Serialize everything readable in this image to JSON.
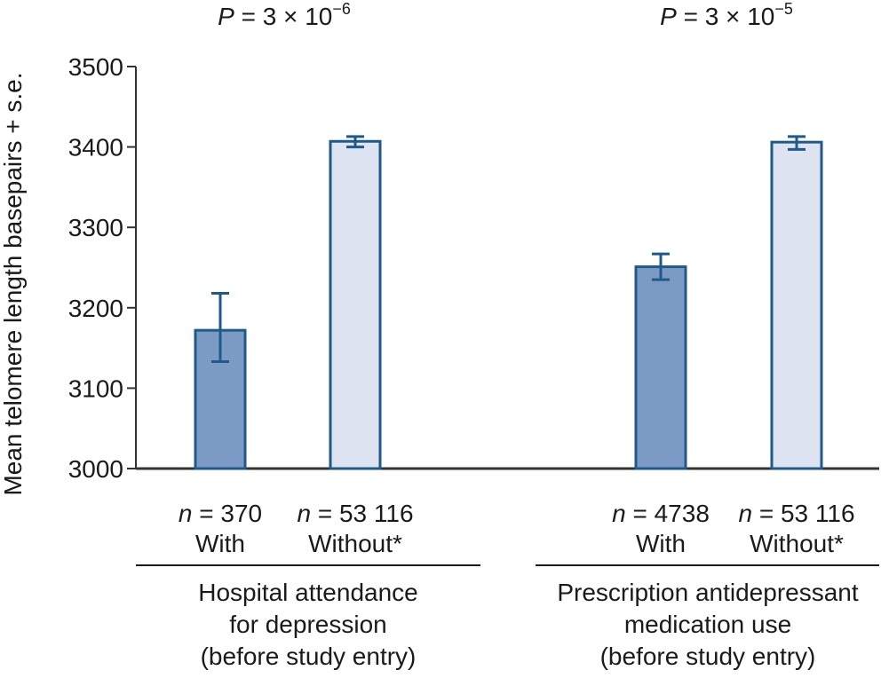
{
  "chart_data": {
    "type": "bar",
    "ylabel": "Mean telomere length basepairs + s.e.",
    "ylim": [
      3000,
      3500
    ],
    "yticks": [
      3000,
      3100,
      3200,
      3300,
      3400,
      3500
    ],
    "colors": {
      "with": "#7b9bc5",
      "without": "#dde3f0",
      "stroke": "#1f5a8a",
      "axis": "#333333"
    },
    "groups": [
      {
        "name": "Hospital attendance for depression (before study entry)",
        "description_lines": [
          "Hospital attendance",
          "for depression",
          "(before study entry)"
        ],
        "p_value": {
          "mantissa": "3",
          "exponent": "−6"
        },
        "bars": [
          {
            "category": "With",
            "n": "370",
            "value": 3172,
            "se_upper": 3218,
            "se_lower": 3133
          },
          {
            "category": "Without*",
            "n": "53 116",
            "value": 3407,
            "se_upper": 3413,
            "se_lower": 3400
          }
        ]
      },
      {
        "name": "Prescription antidepressant medication use (before study entry)",
        "description_lines": [
          "Prescription antidepressant",
          "medication use",
          "(before study entry)"
        ],
        "p_value": {
          "mantissa": "3",
          "exponent": "−5"
        },
        "bars": [
          {
            "category": "With",
            "n": "4738",
            "value": 3251,
            "se_upper": 3267,
            "se_lower": 3235
          },
          {
            "category": "Without*",
            "n": "53 116",
            "value": 3406,
            "se_upper": 3413,
            "se_lower": 3397
          }
        ]
      }
    ]
  }
}
